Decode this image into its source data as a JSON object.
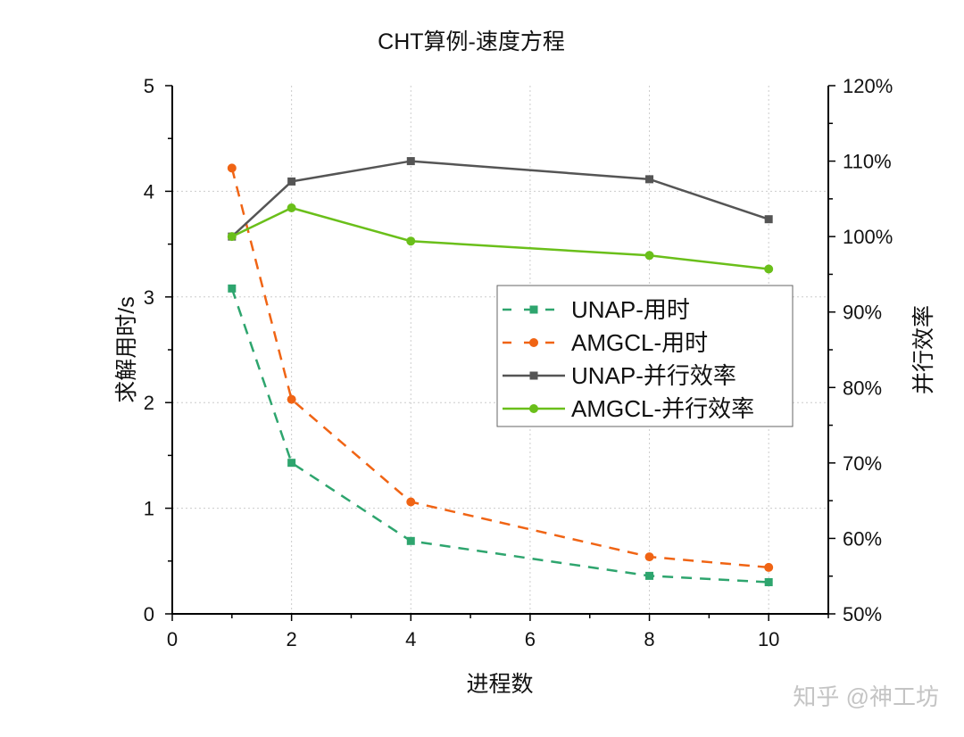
{
  "chart_data": {
    "type": "line",
    "title": "CHT算例-速度方程",
    "xlabel": "进程数",
    "ylabel": "求解用时/s",
    "y2label": "并行效率",
    "xlim": [
      0,
      11
    ],
    "ylim": [
      0,
      5
    ],
    "y2lim": [
      50,
      120
    ],
    "xticks": [
      0,
      2,
      4,
      6,
      8,
      10
    ],
    "yticks": [
      0,
      1,
      2,
      3,
      4,
      5
    ],
    "y2ticks": [
      "50%",
      "60%",
      "70%",
      "80%",
      "90%",
      "100%",
      "110%",
      "120%"
    ],
    "y2tick_values": [
      50,
      60,
      70,
      80,
      90,
      100,
      110,
      120
    ],
    "grid": true,
    "legend_position": "center-right",
    "x": [
      1,
      2,
      4,
      8,
      10
    ],
    "series": [
      {
        "name": "UNAP-用时",
        "axis": "left",
        "values": [
          3.08,
          1.43,
          0.69,
          0.36,
          0.3
        ],
        "color": "#2ea56e",
        "dash": true,
        "marker": "square"
      },
      {
        "name": "AMGCL-用时",
        "axis": "left",
        "values": [
          4.22,
          2.03,
          1.06,
          0.54,
          0.44
        ],
        "color": "#f06414",
        "dash": true,
        "marker": "circle"
      },
      {
        "name": "UNAP-并行效率",
        "axis": "right",
        "values": [
          100.0,
          107.3,
          110.0,
          107.6,
          102.3
        ],
        "color": "#555555",
        "dash": false,
        "marker": "square"
      },
      {
        "name": "AMGCL-并行效率",
        "axis": "right",
        "values": [
          100.0,
          103.8,
          99.4,
          97.5,
          95.7
        ],
        "color": "#6abf1a",
        "dash": false,
        "marker": "circle"
      }
    ]
  },
  "watermark": "知乎 @神工坊"
}
